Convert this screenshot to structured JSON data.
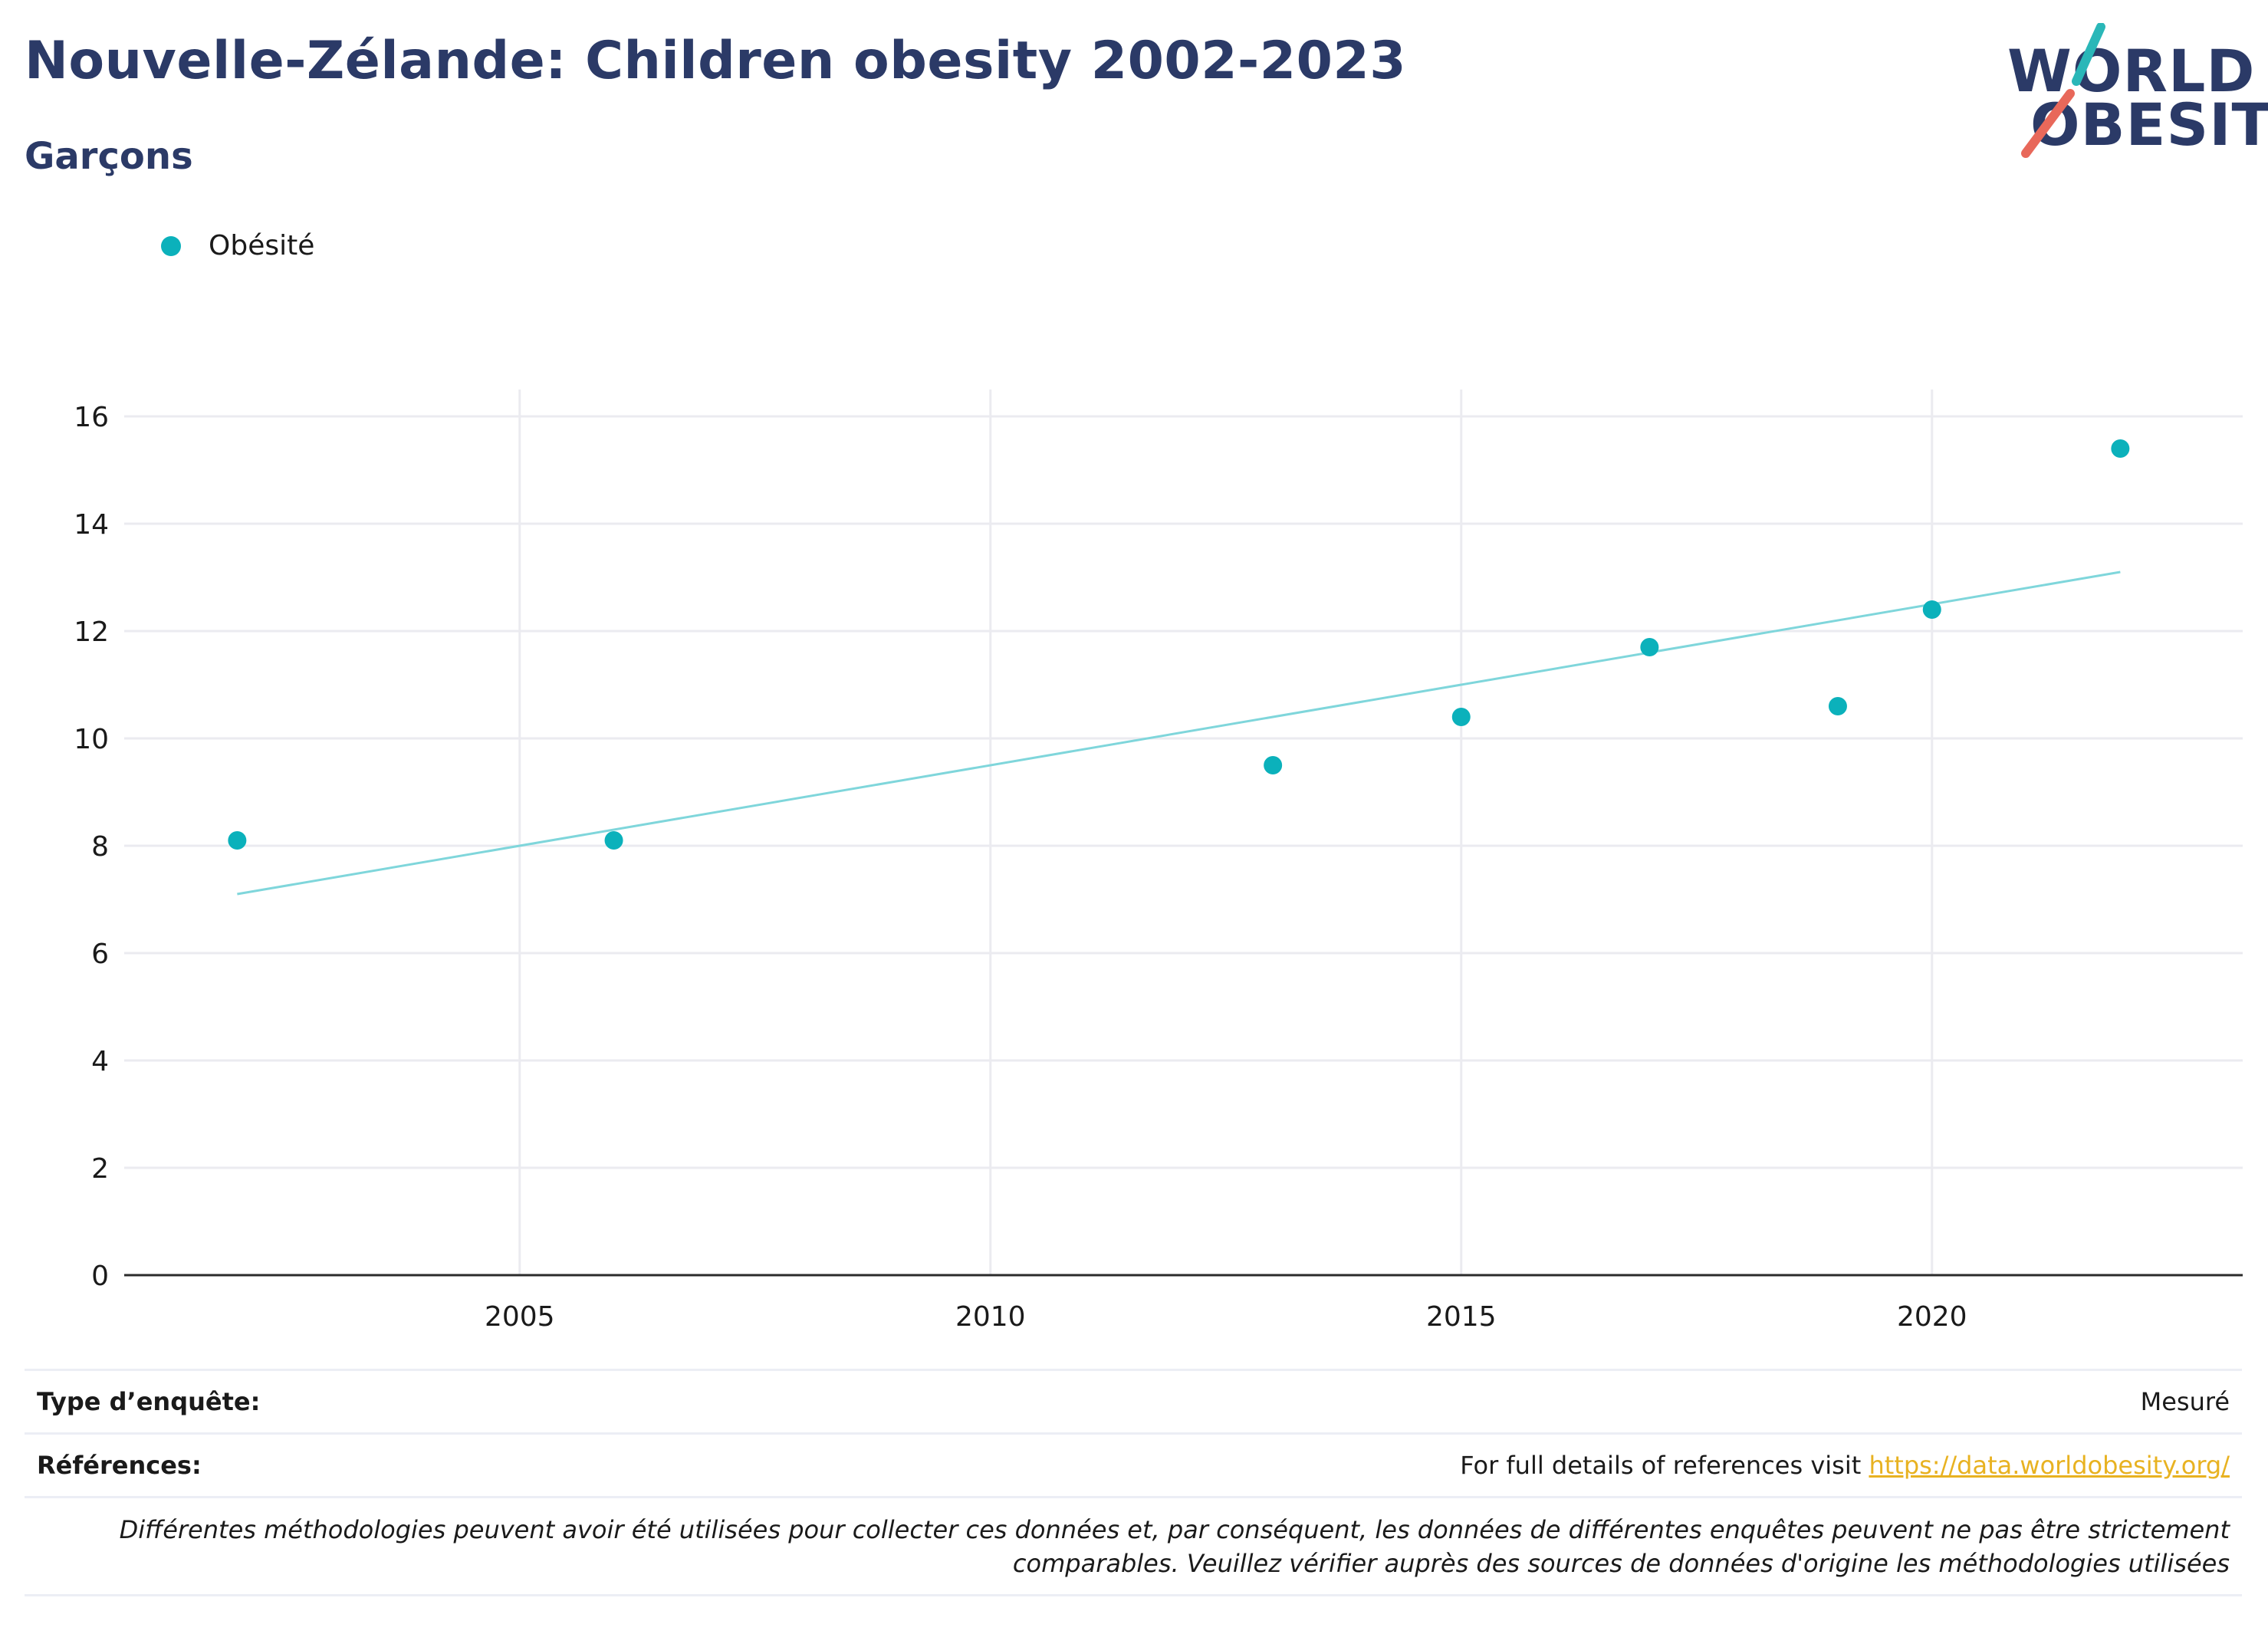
{
  "title": "Nouvelle-Zélande: Children obesity 2002-2023",
  "subtitle": "Garçons",
  "logo": {
    "line1": "WORLD",
    "line2": "OBESITY",
    "accent_colors": [
      "#2ab7b8",
      "#e8685a"
    ]
  },
  "legend": {
    "label": "Obésité",
    "color": "#0bb1bb"
  },
  "chart_data": {
    "type": "scatter",
    "series": [
      {
        "name": "Obésité",
        "x": [
          2002,
          2006,
          2013,
          2015,
          2017,
          2019,
          2020,
          2022
        ],
        "y": [
          8.1,
          8.1,
          9.5,
          10.4,
          11.7,
          10.6,
          12.4,
          15.4
        ]
      }
    ],
    "trendline": {
      "x": [
        2002,
        2022
      ],
      "y": [
        7.1,
        13.1
      ],
      "color": "#7fd6db"
    },
    "xlim": [
      2000.8,
      2023.3
    ],
    "ylim": [
      0,
      16.5
    ],
    "x_ticks": [
      "2005",
      "2010",
      "2015",
      "2020"
    ],
    "y_ticks": [
      "0",
      "2",
      "4",
      "6",
      "8",
      "10",
      "12",
      "14",
      "16"
    ],
    "grid": true,
    "legend_position": "top-left",
    "point_color": "#0bb1bb"
  },
  "footer": {
    "survey_type_label": "Type d’enquête:",
    "survey_type_value": "Mesuré",
    "references_label": "Références:",
    "references_text": "For full details of references visit ",
    "references_link": "https://data.worldobesity.org/",
    "note_line1": "Différentes méthodologies peuvent avoir été utilisées pour collecter ces données et, par conséquent, les données de différentes enquêtes peuvent ne pas être strictement",
    "note_line2": "comparables. Veuillez vérifier auprès des sources de données d'origine les méthodologies utilisées"
  }
}
